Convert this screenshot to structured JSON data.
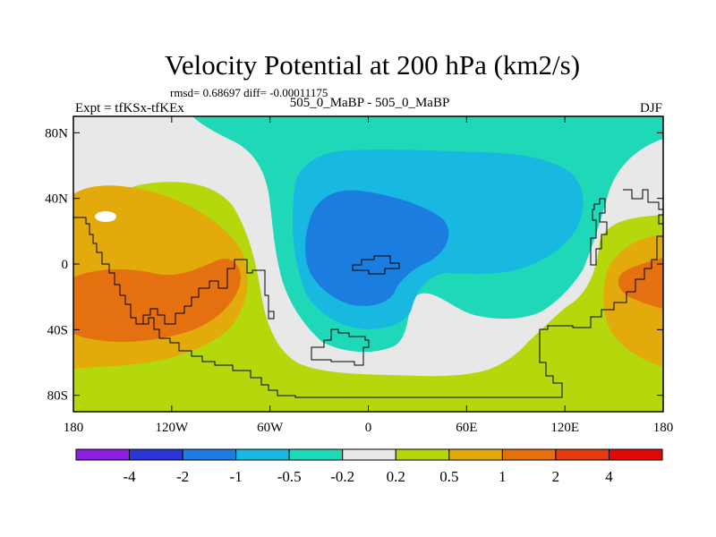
{
  "chart_data": {
    "type": "heatmap",
    "title": "Velocity Potential at 200 hPa (km2/s)",
    "stats_text": "rmsd= 0.68697 diff= -0.00011175",
    "left_label": "Expt = tfKSx-tfKEx",
    "center_label": "505_0_MaBP - 505_0_MaBP",
    "right_label": "DJF",
    "xlim": [
      -180,
      180
    ],
    "ylim": [
      -90,
      90
    ],
    "x_ticks": [
      {
        "value": -180,
        "label": "180"
      },
      {
        "value": -120,
        "label": "120W"
      },
      {
        "value": -60,
        "label": "60W"
      },
      {
        "value": 0,
        "label": "0"
      },
      {
        "value": 60,
        "label": "60E"
      },
      {
        "value": 120,
        "label": "120E"
      },
      {
        "value": 180,
        "label": "180"
      }
    ],
    "y_ticks": [
      {
        "value": 80,
        "label": "80N"
      },
      {
        "value": 40,
        "label": "40N"
      },
      {
        "value": 0,
        "label": "0"
      },
      {
        "value": -40,
        "label": "40S"
      },
      {
        "value": -80,
        "label": "80S"
      }
    ],
    "levels": [
      "-4",
      "-2",
      "-1",
      "-0.5",
      "-0.2",
      "0.2",
      "0.5",
      "1",
      "2",
      "4"
    ],
    "colors": [
      "#8a1fe0",
      "#2a37d6",
      "#1b7de0",
      "#18b8e0",
      "#1fd8b8",
      "#e8e8e8",
      "#b5d80c",
      "#e2ab0b",
      "#e47010",
      "#e23c10",
      "#e00808"
    ],
    "regions": [
      {
        "level": "0.2 to 0.5",
        "color": "#b5d80c",
        "location": "global background, tropics and southern hemisphere"
      },
      {
        "level": "-0.5 to -0.2",
        "color": "#1fd8b8",
        "location": "northern band and central negative lobe, 60W-60E"
      },
      {
        "level": "-1 to -0.5",
        "color": "#18b8e0",
        "location": "40W-50E, 60N-40S"
      },
      {
        "level": "-2 to -1",
        "color": "#1b7de0",
        "location": "30W-20E, 40N-20S"
      },
      {
        "level": "-0.2 to 0.2",
        "color": "#e8e8e8",
        "location": "S-shaped band 100W-110E and NE Pacific"
      },
      {
        "level": "0.5 to 1",
        "color": "#e2ab0b",
        "location": "Pacific 180-90W, 30N-60S and 150E-180"
      },
      {
        "level": "1 to 2",
        "color": "#e47010",
        "location": "Pacific 180-100W, 10S-45S and 160E-180"
      }
    ]
  }
}
